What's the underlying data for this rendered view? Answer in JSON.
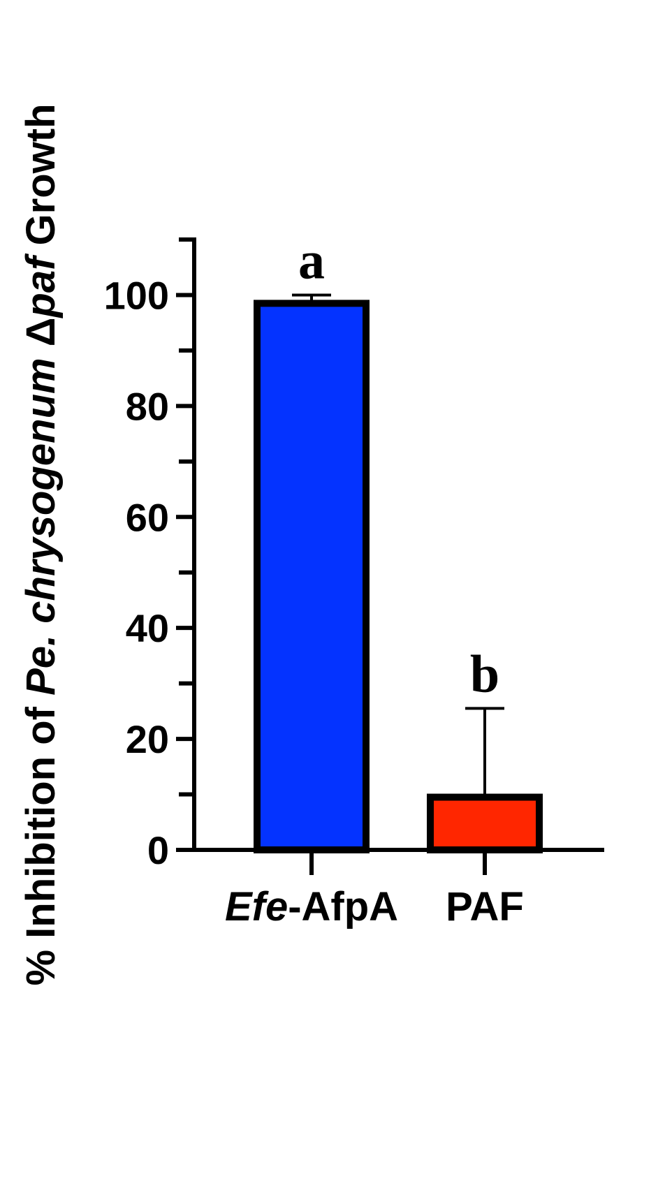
{
  "chart_data": {
    "type": "bar",
    "ylabel_parts": [
      {
        "text": "% Inhibition of ",
        "italic": false
      },
      {
        "text": "Pe.",
        "italic": true
      },
      {
        "text": " ",
        "italic": false
      },
      {
        "text": "chrysogenum",
        "italic": true
      },
      {
        "text": " Δ",
        "italic": false
      },
      {
        "text": "paf",
        "italic": true
      },
      {
        "text": " Growth",
        "italic": false
      }
    ],
    "ylim": [
      0,
      110
    ],
    "yticks": [
      0,
      20,
      40,
      60,
      80,
      100
    ],
    "grid": false,
    "categories": [
      {
        "parts": [
          {
            "text": "Efe",
            "italic": true
          },
          {
            "text": "-AfpA",
            "italic": false
          }
        ]
      },
      {
        "parts": [
          {
            "text": "PAF",
            "italic": false
          }
        ]
      }
    ],
    "values": [
      98.5,
      9.5
    ],
    "error_upper": [
      1.5,
      16
    ],
    "colors": [
      "#0433ff",
      "#ff2600"
    ],
    "significance": [
      "a",
      "b"
    ]
  }
}
